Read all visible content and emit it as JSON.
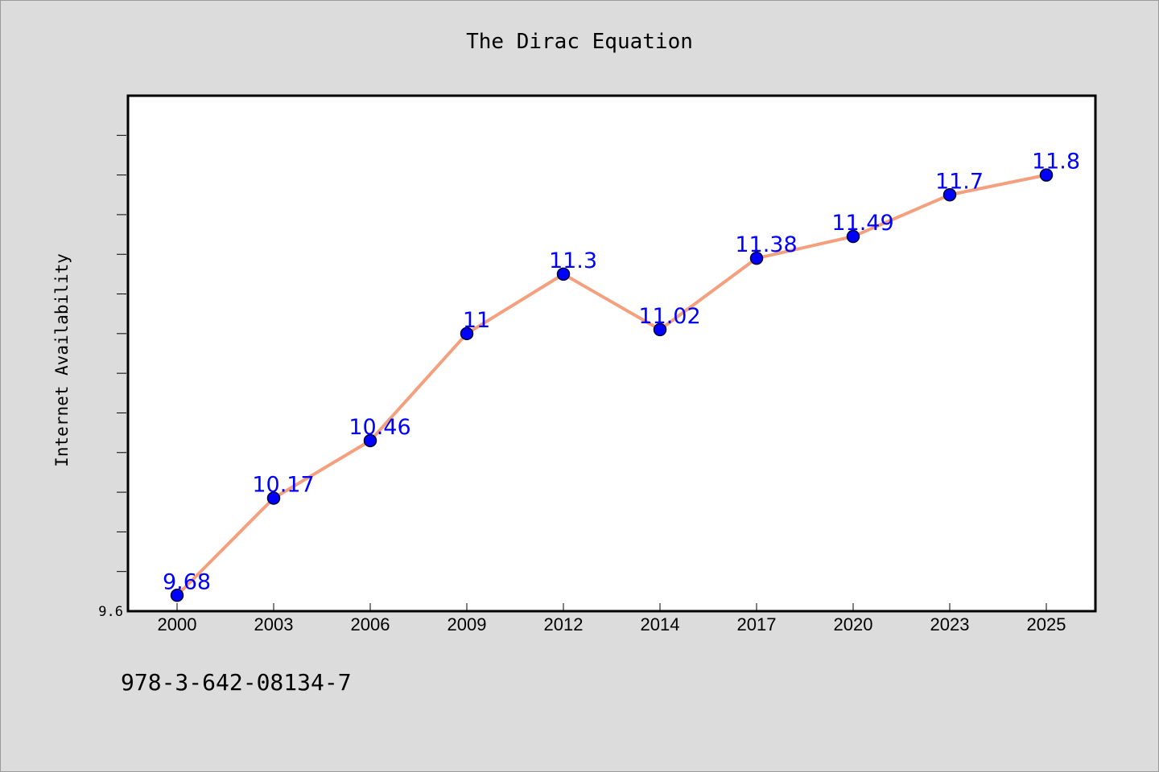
{
  "chart_data": {
    "type": "line",
    "title": "The Dirac Equation",
    "xlabel": "",
    "ylabel": "Internet Availability",
    "categories": [
      "2000",
      "2003",
      "2006",
      "2009",
      "2012",
      "2014",
      "2017",
      "2020",
      "2023",
      "2025"
    ],
    "series": [
      {
        "values": [
          9.68,
          10.17,
          10.46,
          11,
          11.3,
          11.02,
          11.38,
          11.49,
          11.7,
          11.8
        ],
        "labels": [
          "9.68",
          "10.17",
          "10.46",
          "11",
          "11.3",
          "11.02",
          "11.38",
          "11.49",
          "11.7",
          "11.8"
        ]
      }
    ],
    "ylim": [
      9.6,
      12.2
    ],
    "yticks_labeled": [
      "9.6"
    ],
    "grid": false,
    "legend": "none",
    "colors": {
      "line": "#f4a07f",
      "marker_fill": "#0000ff",
      "marker_edge": "#000033",
      "data_label": "#0000ff",
      "background": "#dcdcdc",
      "plot_background": "#ffffff"
    }
  },
  "footer": {
    "isbn": "978-3-642-08134-7"
  }
}
